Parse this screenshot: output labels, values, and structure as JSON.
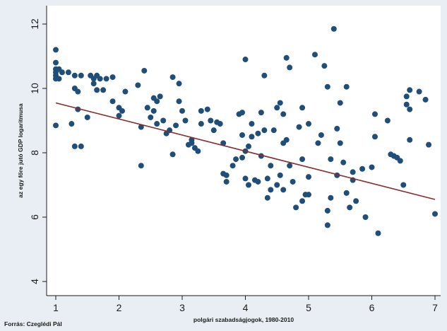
{
  "chart_data": {
    "type": "scatter",
    "title": "",
    "xlabel": "polgári szabadságjogok, 1980-2010",
    "ylabel": "az egy főre jutó GDP logaritmusa",
    "source": "Forrás: Czeglédi Pál",
    "xlim": [
      0.95,
      7.1
    ],
    "ylim": [
      3.7,
      12.2
    ],
    "xticks": [
      "1",
      "2",
      "3",
      "4",
      "5",
      "6",
      "7"
    ],
    "yticks": [
      "4",
      "6",
      "8",
      "10",
      "12"
    ],
    "grid": false,
    "colors": {
      "points": "#1f4e79",
      "fit_line": "#8b2b2b",
      "background": "#e9eef4",
      "plot_bg": "#ffffff"
    },
    "fit_line": {
      "x": [
        1,
        7
      ],
      "y": [
        9.55,
        6.55
      ]
    },
    "points": [
      [
        1.0,
        11.2
      ],
      [
        1.0,
        10.8
      ],
      [
        1.0,
        10.6
      ],
      [
        1.0,
        10.5
      ],
      [
        1.0,
        10.4
      ],
      [
        1.0,
        10.3
      ],
      [
        1.0,
        8.85
      ],
      [
        1.05,
        10.6
      ],
      [
        1.05,
        10.3
      ],
      [
        1.1,
        10.5
      ],
      [
        1.2,
        10.5
      ],
      [
        1.25,
        8.9
      ],
      [
        1.3,
        10.4
      ],
      [
        1.3,
        10.0
      ],
      [
        1.3,
        8.2
      ],
      [
        1.35,
        9.9
      ],
      [
        1.35,
        9.35
      ],
      [
        1.4,
        10.4
      ],
      [
        1.4,
        8.2
      ],
      [
        1.5,
        9.1
      ],
      [
        1.55,
        10.4
      ],
      [
        1.6,
        10.3
      ],
      [
        1.6,
        10.15
      ],
      [
        1.65,
        10.4
      ],
      [
        1.65,
        9.95
      ],
      [
        1.7,
        10.3
      ],
      [
        1.75,
        9.95
      ],
      [
        1.8,
        10.3
      ],
      [
        1.9,
        9.6
      ],
      [
        1.9,
        10.35
      ],
      [
        2.0,
        9.4
      ],
      [
        2.0,
        9.15
      ],
      [
        2.05,
        9.3
      ],
      [
        2.1,
        9.9
      ],
      [
        2.3,
        10.1
      ],
      [
        2.35,
        8.8
      ],
      [
        2.35,
        7.6
      ],
      [
        2.4,
        10.55
      ],
      [
        2.45,
        9.4
      ],
      [
        2.5,
        9.1
      ],
      [
        2.55,
        9.7
      ],
      [
        2.55,
        9.3
      ],
      [
        2.6,
        9.6
      ],
      [
        2.6,
        8.9
      ],
      [
        2.65,
        9.75
      ],
      [
        2.7,
        9.0
      ],
      [
        2.75,
        8.6
      ],
      [
        2.8,
        8.7
      ],
      [
        2.85,
        10.35
      ],
      [
        2.85,
        7.95
      ],
      [
        2.9,
        8.85
      ],
      [
        2.95,
        10.15
      ],
      [
        2.95,
        9.6
      ],
      [
        3.0,
        9.3
      ],
      [
        3.05,
        9.0
      ],
      [
        3.1,
        8.25
      ],
      [
        3.15,
        8.4
      ],
      [
        3.15,
        8.3
      ],
      [
        3.2,
        8.15
      ],
      [
        3.25,
        8.05
      ],
      [
        3.3,
        9.3
      ],
      [
        3.3,
        8.9
      ],
      [
        3.4,
        9.35
      ],
      [
        3.45,
        9.0
      ],
      [
        3.5,
        8.7
      ],
      [
        3.55,
        8.95
      ],
      [
        3.6,
        8.9
      ],
      [
        3.65,
        8.3
      ],
      [
        3.65,
        7.35
      ],
      [
        3.7,
        7.1
      ],
      [
        3.7,
        7.3
      ],
      [
        3.8,
        7.6
      ],
      [
        3.85,
        7.8
      ],
      [
        3.9,
        9.2
      ],
      [
        3.95,
        9.25
      ],
      [
        3.95,
        8.55
      ],
      [
        3.95,
        7.85
      ],
      [
        4.0,
        10.9
      ],
      [
        4.0,
        8.05
      ],
      [
        4.0,
        7.2
      ],
      [
        4.05,
        8.2
      ],
      [
        4.05,
        7.0
      ],
      [
        4.1,
        8.9
      ],
      [
        4.1,
        8.5
      ],
      [
        4.15,
        7.15
      ],
      [
        4.2,
        8.6
      ],
      [
        4.2,
        7.1
      ],
      [
        4.25,
        9.25
      ],
      [
        4.25,
        7.9
      ],
      [
        4.3,
        10.4
      ],
      [
        4.3,
        8.7
      ],
      [
        4.35,
        7.2
      ],
      [
        4.35,
        6.6
      ],
      [
        4.4,
        6.85
      ],
      [
        4.4,
        7.6
      ],
      [
        4.45,
        8.7
      ],
      [
        4.5,
        9.4
      ],
      [
        4.5,
        7.0
      ],
      [
        4.55,
        9.55
      ],
      [
        4.55,
        7.3
      ],
      [
        4.6,
        9.2
      ],
      [
        4.6,
        8.3
      ],
      [
        4.6,
        6.85
      ],
      [
        4.65,
        10.95
      ],
      [
        4.65,
        8.4
      ],
      [
        4.7,
        10.65
      ],
      [
        4.7,
        7.6
      ],
      [
        4.75,
        7.1
      ],
      [
        4.8,
        6.3
      ],
      [
        4.85,
        8.8
      ],
      [
        4.9,
        9.4
      ],
      [
        4.9,
        7.8
      ],
      [
        4.9,
        6.5
      ],
      [
        4.95,
        6.7
      ],
      [
        5.0,
        8.9
      ],
      [
        5.0,
        7.25
      ],
      [
        5.0,
        6.7
      ],
      [
        5.1,
        11.05
      ],
      [
        5.15,
        8.3
      ],
      [
        5.2,
        8.55
      ],
      [
        5.25,
        10.7
      ],
      [
        5.3,
        10.05
      ],
      [
        5.3,
        6.2
      ],
      [
        5.3,
        5.75
      ],
      [
        5.35,
        7.8
      ],
      [
        5.35,
        6.6
      ],
      [
        5.4,
        11.85
      ],
      [
        5.45,
        8.75
      ],
      [
        5.45,
        7.3
      ],
      [
        5.5,
        9.55
      ],
      [
        5.5,
        8.3
      ],
      [
        5.55,
        7.7
      ],
      [
        5.6,
        10.05
      ],
      [
        5.6,
        6.75
      ],
      [
        5.65,
        6.3
      ],
      [
        5.7,
        7.4
      ],
      [
        5.7,
        7.15
      ],
      [
        5.75,
        6.5
      ],
      [
        5.85,
        7.5
      ],
      [
        5.9,
        6.0
      ],
      [
        6.0,
        7.55
      ],
      [
        6.05,
        9.2
      ],
      [
        6.05,
        8.5
      ],
      [
        6.1,
        5.5
      ],
      [
        6.25,
        9.0
      ],
      [
        6.3,
        7.95
      ],
      [
        6.35,
        7.9
      ],
      [
        6.4,
        7.85
      ],
      [
        6.45,
        7.75
      ],
      [
        6.5,
        7.0
      ],
      [
        6.55,
        9.75
      ],
      [
        6.55,
        9.5
      ],
      [
        6.6,
        9.95
      ],
      [
        6.6,
        9.35
      ],
      [
        6.6,
        8.4
      ],
      [
        6.75,
        9.9
      ],
      [
        6.85,
        9.65
      ],
      [
        6.9,
        8.25
      ],
      [
        7.0,
        6.1
      ]
    ]
  }
}
